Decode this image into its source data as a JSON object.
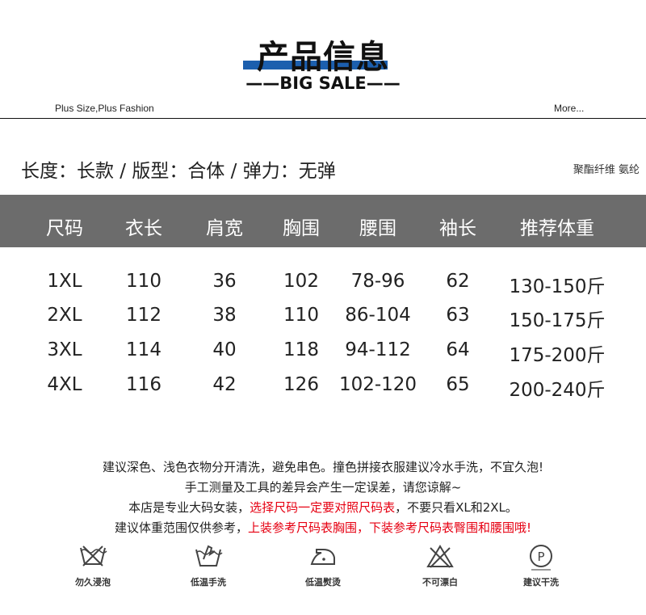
{
  "header": {
    "title": "产品信息",
    "subtitle": "——BIG SALE——",
    "left_tag": "Plus Size,Plus Fashion",
    "right_link": "More...",
    "accent": "#1c5fae"
  },
  "specs": {
    "line": "长度：长款 / 版型：合体 / 弹力：无弹",
    "fabric": "聚酯纤维 氨纶"
  },
  "table": {
    "header_bg": "#6c6c6c",
    "columns": [
      "尺码",
      "衣长",
      "肩宽",
      "胸围",
      "腰围",
      "袖长",
      "推荐体重"
    ],
    "rows": [
      [
        "1XL",
        "110",
        "36",
        "102",
        "78-96",
        "62",
        "130-150斤"
      ],
      [
        "2XL",
        "112",
        "38",
        "110",
        "86-104",
        "63",
        "150-175斤"
      ],
      [
        "3XL",
        "114",
        "40",
        "118",
        "94-112",
        "64",
        "175-200斤"
      ],
      [
        "4XL",
        "116",
        "42",
        "126",
        "102-120",
        "65",
        "200-240斤"
      ]
    ]
  },
  "notes": {
    "line1": "建议深色、浅色衣物分开清洗，避免串色。撞色拼接衣服建议冷水手洗，不宜久泡!",
    "line2": "手工测量及工具的差异会产生一定误差，请您谅解~",
    "line3_a": "本店是专业大码女装，",
    "line3_red": "选择尺码一定要对照尺码表",
    "line3_b": "，不要只看XL和2XL。",
    "line4_a": "建议体重范围仅供参考，",
    "line4_red": "上装参考尺码表胸围，下装参考尺码表臀围和腰围哦!",
    "red": "#e60012"
  },
  "care": [
    {
      "icon": "no-soak-icon",
      "label": "勿久浸泡"
    },
    {
      "icon": "hand-wash-icon",
      "label": "低温手洗"
    },
    {
      "icon": "low-iron-icon",
      "label": "低温熨烫"
    },
    {
      "icon": "no-bleach-icon",
      "label": "不可漂白"
    },
    {
      "icon": "dry-clean-icon",
      "label": "建议干洗"
    }
  ]
}
